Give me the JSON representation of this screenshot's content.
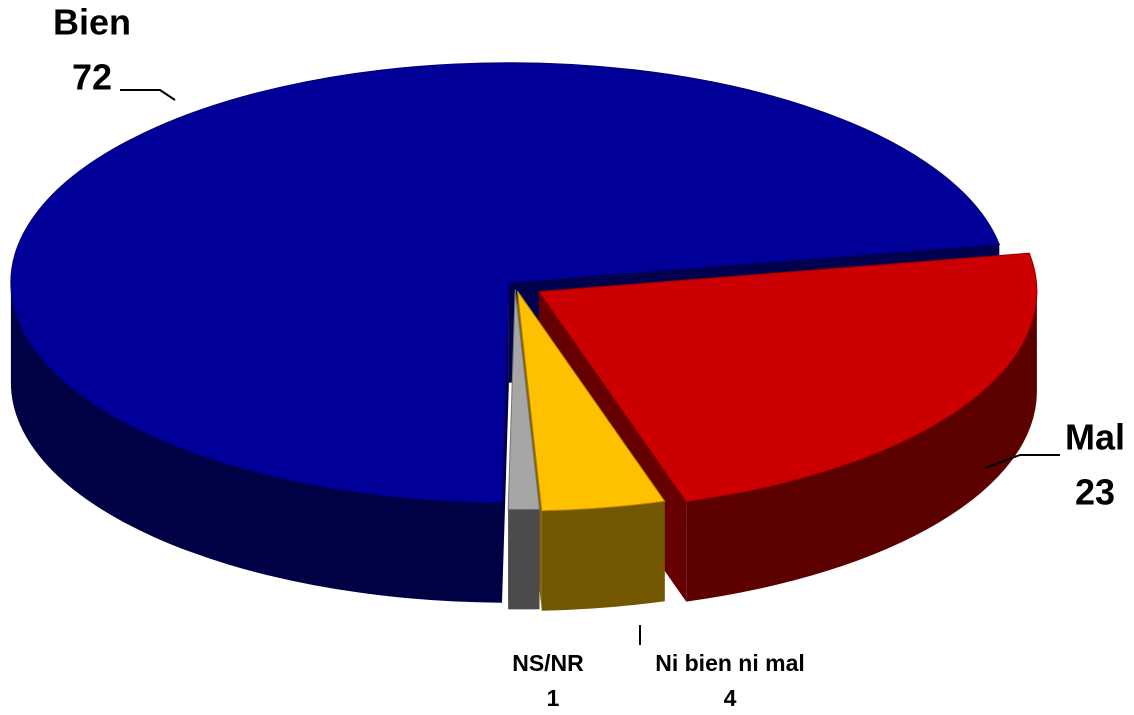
{
  "chart_data": {
    "type": "pie",
    "categories": [
      "Mal",
      "Ni bien ni mal",
      "NS/NR",
      "Bien"
    ],
    "values": [
      23,
      4,
      1,
      72
    ],
    "colors": [
      "#cc0000",
      "#ffc000",
      "#a6a6a6",
      "#000099"
    ]
  }
}
